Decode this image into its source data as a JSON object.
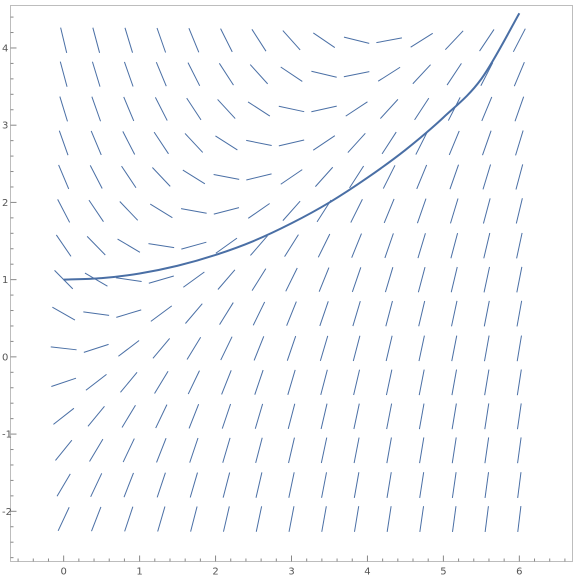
{
  "chart_data": {
    "type": "line",
    "title": "",
    "xlabel": "",
    "ylabel": "",
    "xlim": [
      -0.7,
      6.7
    ],
    "ylim": [
      -2.65,
      4.55
    ],
    "x_ticks": [
      0,
      1,
      2,
      3,
      4,
      5,
      6
    ],
    "y_ticks": [
      -2,
      -1,
      0,
      1,
      2,
      3,
      4
    ],
    "x_tick_labels": [
      "0",
      "1",
      "2",
      "3",
      "4",
      "5",
      "6"
    ],
    "y_tick_labels": [
      "-2",
      "-1",
      "0",
      "1",
      "2",
      "3",
      "4"
    ],
    "grid": false,
    "slope_field": {
      "x_values": [
        0,
        0.4286,
        0.8571,
        1.2857,
        1.7143,
        2.1429,
        2.5714,
        3.0,
        3.4286,
        3.8571,
        4.2857,
        4.7143,
        5.1429,
        5.5714,
        6.0
      ],
      "y_values": [
        -2.1,
        -1.66,
        -1.21,
        -0.77,
        -0.33,
        0.11,
        0.56,
        1.0,
        1.44,
        1.89,
        2.33,
        2.77,
        3.21,
        3.66,
        4.1
      ],
      "slope_rule": "slope = x - y"
    },
    "series": [
      {
        "x": [
          0,
          0.5,
          1,
          1.5,
          2,
          2.5,
          3,
          3.5,
          4,
          4.5,
          5,
          5.5,
          6
        ],
        "y": [
          1.0,
          1.02,
          1.08,
          1.18,
          1.32,
          1.5,
          1.73,
          2.0,
          2.32,
          2.68,
          3.1,
          3.6,
          4.45
        ]
      }
    ]
  },
  "style": {
    "curve_color": "#4a6fa5",
    "segment_color": "#4a6fa5",
    "axis_color": "#888888",
    "frame_color": "#bdbdbd"
  }
}
